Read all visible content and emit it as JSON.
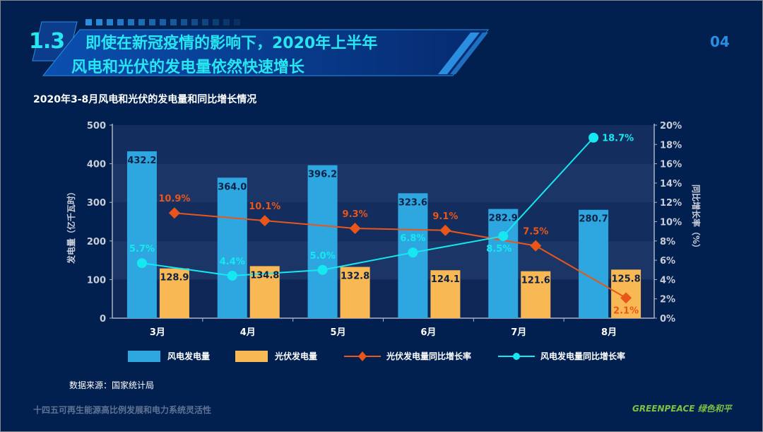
{
  "header": {
    "section": "1.3",
    "title_line1": "即使在新冠疫情的影响下，2020年上半年",
    "title_line2": "风电和光伏的发电量依然快速增长",
    "page_number": "04"
  },
  "chart_data": {
    "type": "bar+line",
    "title": "2020年3-8月风电和光伏的发电量和同比增长情况",
    "categories": [
      "3月",
      "4月",
      "5月",
      "6月",
      "7月",
      "8月"
    ],
    "ylabel_left": "发电量（亿千瓦时）",
    "ylabel_right": "同比增长率（%）",
    "ylim_left": [
      0,
      500
    ],
    "yticks_left": [
      "0",
      "100",
      "200",
      "300",
      "400",
      "500"
    ],
    "ylim_right": [
      0,
      20
    ],
    "yticks_right": [
      "0%",
      "2%",
      "4%",
      "6%",
      "8%",
      "10%",
      "12%",
      "14%",
      "16%",
      "18%",
      "20%"
    ],
    "legend_position": "bottom",
    "series": [
      {
        "name": "风电发电量",
        "type": "bar",
        "axis": "left",
        "color": "#2ea7e0",
        "values": [
          432.2,
          364.0,
          396.2,
          323.6,
          282.9,
          280.7
        ],
        "labels": [
          "432.2",
          "364.0",
          "396.2",
          "323.6",
          "282.9",
          "280.7"
        ]
      },
      {
        "name": "光伏发电量",
        "type": "bar",
        "axis": "left",
        "color": "#f8b955",
        "values": [
          128.9,
          134.8,
          132.8,
          124.1,
          121.6,
          125.8
        ],
        "labels": [
          "128.9",
          "134.8",
          "132.8",
          "124.1",
          "121.6",
          "125.8"
        ]
      },
      {
        "name": "光伏发电量同比增长率",
        "type": "line",
        "axis": "right",
        "color": "#e8561a",
        "marker": "diamond",
        "values": [
          10.9,
          10.1,
          9.3,
          9.1,
          7.5,
          2.1
        ],
        "labels": [
          "10.9%",
          "10.1%",
          "9.3%",
          "9.1%",
          "7.5%",
          "2.1%"
        ]
      },
      {
        "name": "风电发电量同比增长率",
        "type": "line",
        "axis": "right",
        "color": "#15e8f0",
        "marker": "circle",
        "values": [
          5.7,
          4.4,
          5.0,
          6.8,
          8.5,
          18.7
        ],
        "labels": [
          "5.7%",
          "4.4%",
          "5.0%",
          "6.8%",
          "8.5%",
          "18.7%"
        ]
      }
    ]
  },
  "source": "数据来源：国家统计局",
  "footer": "十四五可再生能源高比例发展和电力系统灵活性",
  "logo": "GREENPEACE 绿色和平"
}
